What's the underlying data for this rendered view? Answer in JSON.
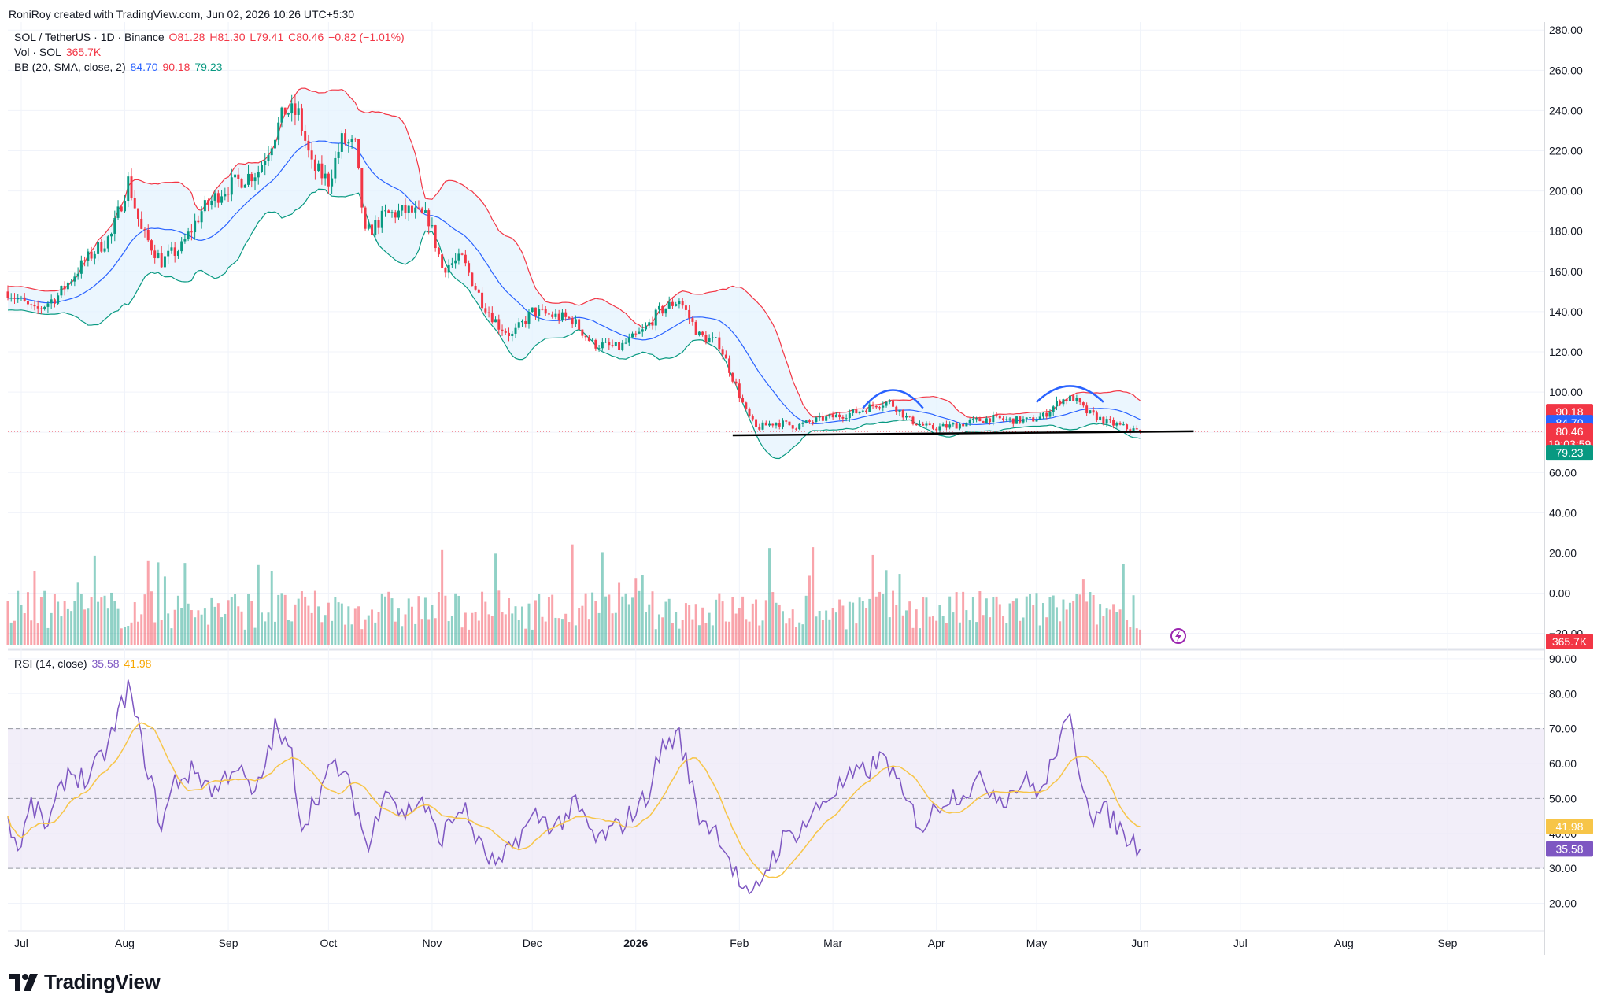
{
  "header": {
    "created": "RoniRoy created with TradingView.com, Jun 02, 2026 10:26 UTC+5:30"
  },
  "legend": {
    "symbol": "SOL / TetherUS · 1D · Binance",
    "o": "O81.28",
    "h": "H81.30",
    "l": "L79.41",
    "c": "C80.46",
    "chg": "−0.82 (−1.01%)",
    "vol_label": "Vol · SOL",
    "vol_value": "365.7K",
    "bb_label": "BB (20, SMA, close, 2)",
    "bb_basis": "84.70",
    "bb_upper": "90.18",
    "bb_lower": "79.23",
    "rsi_label": "RSI (14, close)",
    "rsi_value": "35.58",
    "rsi_ma": "41.98"
  },
  "price_axis_labels": [
    "280.00",
    "260.00",
    "240.00",
    "220.00",
    "200.00",
    "180.00",
    "160.00",
    "140.00",
    "120.00",
    "100.00",
    "60.00",
    "40.00",
    "20.00",
    "0.00",
    "−20.00"
  ],
  "rsi_axis_labels": [
    "90.00",
    "80.00",
    "70.00",
    "60.00",
    "50.00",
    "40.00",
    "30.00",
    "20.00"
  ],
  "price_tags": {
    "upper": "90.18",
    "basis": "84.70",
    "last": "80.46",
    "countdown": "19:03:59",
    "lower": "79.23",
    "volume": "365.7K",
    "rsi_ma": "41.98",
    "rsi": "35.58"
  },
  "time_axis": [
    "Jul",
    "Aug",
    "Sep",
    "Oct",
    "Nov",
    "Dec",
    "2026",
    "Feb",
    "Mar",
    "Apr",
    "May",
    "Jun",
    "Jul",
    "Aug",
    "Sep"
  ],
  "brand": "TradingView",
  "colors": {
    "up": "#089981",
    "down": "#f23645",
    "bb_basis": "#2962ff",
    "bb_upper": "#f23645",
    "bb_lower": "#089981",
    "bb_fill": "#e3f2fd",
    "rsi": "#7e57c2",
    "rsi_ma": "#f7c548",
    "rsi_band": "#ede7f6",
    "annotation_arc": "#2962ff",
    "support_line": "#000000"
  },
  "chart_data": {
    "type": "candlestick",
    "symbol": "SOL / TetherUS",
    "interval": "1D",
    "x_range": [
      "2025-06-27",
      "2026-09-30"
    ],
    "y_range": [
      -26,
      284
    ],
    "price_anchors": [
      [
        "2025-06-27",
        150
      ],
      [
        "2025-07-05",
        140
      ],
      [
        "2025-07-12",
        148
      ],
      [
        "2025-07-20",
        165
      ],
      [
        "2025-07-28",
        178
      ],
      [
        "2025-08-02",
        205
      ],
      [
        "2025-08-06",
        180
      ],
      [
        "2025-08-12",
        165
      ],
      [
        "2025-08-18",
        172
      ],
      [
        "2025-08-24",
        190
      ],
      [
        "2025-08-30",
        200
      ],
      [
        "2025-09-04",
        205
      ],
      [
        "2025-09-10",
        210
      ],
      [
        "2025-09-14",
        225
      ],
      [
        "2025-09-18",
        240
      ],
      [
        "2025-09-22",
        238
      ],
      [
        "2025-09-26",
        212
      ],
      [
        "2025-10-01",
        205
      ],
      [
        "2025-10-05",
        225
      ],
      [
        "2025-10-09",
        222
      ],
      [
        "2025-10-12",
        178
      ],
      [
        "2025-10-18",
        188
      ],
      [
        "2025-10-25",
        190
      ],
      [
        "2025-10-31",
        186
      ],
      [
        "2025-11-04",
        162
      ],
      [
        "2025-11-10",
        166
      ],
      [
        "2025-11-16",
        145
      ],
      [
        "2025-11-21",
        133
      ],
      [
        "2025-11-25",
        128
      ],
      [
        "2025-12-01",
        140
      ],
      [
        "2025-12-07",
        138
      ],
      [
        "2025-12-13",
        136
      ],
      [
        "2025-12-19",
        124
      ],
      [
        "2025-12-27",
        122
      ],
      [
        "2026-01-03",
        130
      ],
      [
        "2026-01-08",
        140
      ],
      [
        "2026-01-14",
        146
      ],
      [
        "2026-01-20",
        128
      ],
      [
        "2026-01-26",
        124
      ],
      [
        "2026-01-31",
        103
      ],
      [
        "2026-02-03",
        90
      ],
      [
        "2026-02-06",
        82
      ],
      [
        "2026-02-12",
        85
      ],
      [
        "2026-02-18",
        83
      ],
      [
        "2026-02-24",
        86
      ],
      [
        "2026-03-02",
        88
      ],
      [
        "2026-03-08",
        90
      ],
      [
        "2026-03-14",
        94
      ],
      [
        "2026-03-18",
        95
      ],
      [
        "2026-03-24",
        86
      ],
      [
        "2026-03-30",
        82
      ],
      [
        "2026-04-05",
        83
      ],
      [
        "2026-04-11",
        85
      ],
      [
        "2026-04-17",
        87
      ],
      [
        "2026-04-23",
        86
      ],
      [
        "2026-04-29",
        86
      ],
      [
        "2026-05-03",
        88
      ],
      [
        "2026-05-08",
        96
      ],
      [
        "2026-05-12",
        97
      ],
      [
        "2026-05-16",
        90
      ],
      [
        "2026-05-22",
        85
      ],
      [
        "2026-05-28",
        82
      ],
      [
        "2026-06-01",
        80.46
      ]
    ],
    "indicators": {
      "bollinger": {
        "period": 20,
        "source": "close",
        "stdev": 2,
        "last": {
          "basis": 84.7,
          "upper": 90.18,
          "lower": 79.23
        }
      },
      "volume": {
        "last": "365.7K"
      },
      "rsi": {
        "period": 14,
        "last": 35.58,
        "ma_last": 41.98,
        "bands": {
          "upper": 70,
          "middle": 50,
          "lower": 30
        },
        "y_range": [
          12,
          92
        ],
        "anchors": [
          [
            "2025-06-27",
            45
          ],
          [
            "2025-06-30",
            35
          ],
          [
            "2025-07-04",
            48
          ],
          [
            "2025-07-09",
            42
          ],
          [
            "2025-07-15",
            58
          ],
          [
            "2025-07-21",
            55
          ],
          [
            "2025-07-27",
            65
          ],
          [
            "2025-08-02",
            82
          ],
          [
            "2025-08-07",
            62
          ],
          [
            "2025-08-12",
            42
          ],
          [
            "2025-08-16",
            55
          ],
          [
            "2025-08-22",
            58
          ],
          [
            "2025-08-28",
            52
          ],
          [
            "2025-09-03",
            60
          ],
          [
            "2025-09-09",
            50
          ],
          [
            "2025-09-15",
            70
          ],
          [
            "2025-09-20",
            62
          ],
          [
            "2025-09-23",
            42
          ],
          [
            "2025-09-27",
            50
          ],
          [
            "2025-10-03",
            60
          ],
          [
            "2025-10-08",
            52
          ],
          [
            "2025-10-13",
            35
          ],
          [
            "2025-10-18",
            55
          ],
          [
            "2025-10-23",
            45
          ],
          [
            "2025-10-29",
            50
          ],
          [
            "2025-11-03",
            38
          ],
          [
            "2025-11-10",
            48
          ],
          [
            "2025-11-16",
            35
          ],
          [
            "2025-11-21",
            30
          ],
          [
            "2025-11-26",
            38
          ],
          [
            "2025-12-02",
            45
          ],
          [
            "2025-12-08",
            42
          ],
          [
            "2025-12-14",
            48
          ],
          [
            "2025-12-20",
            38
          ],
          [
            "2025-12-27",
            42
          ],
          [
            "2026-01-04",
            50
          ],
          [
            "2026-01-09",
            65
          ],
          [
            "2026-01-14",
            68
          ],
          [
            "2026-01-20",
            45
          ],
          [
            "2026-01-26",
            40
          ],
          [
            "2026-01-31",
            28
          ],
          [
            "2026-02-04",
            20
          ],
          [
            "2026-02-09",
            30
          ],
          [
            "2026-02-14",
            38
          ],
          [
            "2026-02-20",
            42
          ],
          [
            "2026-02-27",
            50
          ],
          [
            "2026-03-05",
            55
          ],
          [
            "2026-03-11",
            58
          ],
          [
            "2026-03-17",
            62
          ],
          [
            "2026-03-22",
            50
          ],
          [
            "2026-03-28",
            42
          ],
          [
            "2026-04-03",
            50
          ],
          [
            "2026-04-09",
            52
          ],
          [
            "2026-04-15",
            55
          ],
          [
            "2026-04-21",
            50
          ],
          [
            "2026-04-27",
            55
          ],
          [
            "2026-05-03",
            52
          ],
          [
            "2026-05-07",
            65
          ],
          [
            "2026-05-11",
            72
          ],
          [
            "2026-05-14",
            58
          ],
          [
            "2026-05-18",
            45
          ],
          [
            "2026-05-22",
            46
          ],
          [
            "2026-05-27",
            40
          ],
          [
            "2026-06-01",
            35.58
          ]
        ]
      }
    },
    "annotations": [
      {
        "type": "arc",
        "from": "2026-03-10",
        "to": "2026-03-28",
        "price": 92,
        "peak": 101
      },
      {
        "type": "arc",
        "from": "2026-05-01",
        "to": "2026-05-21",
        "price": 95,
        "peak": 103
      },
      {
        "type": "trendline",
        "from": [
          "2026-01-30",
          78.5
        ],
        "to": [
          "2026-06-17",
          80.5
        ]
      }
    ]
  }
}
